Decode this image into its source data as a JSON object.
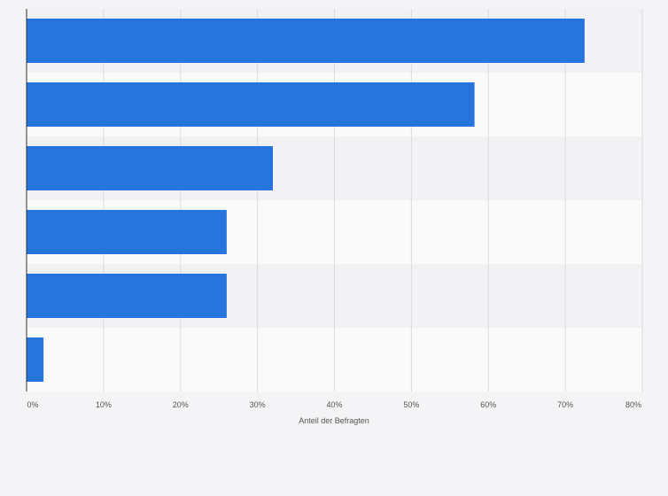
{
  "chart_data": {
    "type": "bar",
    "orientation": "horizontal",
    "categories": [
      "",
      "",
      "",
      "",
      "",
      ""
    ],
    "values": [
      72.5,
      58.2,
      32.0,
      26.0,
      26.0,
      2.2
    ],
    "xlim": [
      0,
      80
    ],
    "ticks": [
      0,
      10,
      20,
      30,
      40,
      50,
      60,
      70,
      80
    ],
    "tick_labels": [
      "0%",
      "10%",
      "20%",
      "30%",
      "40%",
      "50%",
      "60%",
      "70%",
      "80%"
    ],
    "xlabel": "Anteil der Befragten",
    "ylabel": "",
    "title": "",
    "grid": true,
    "bar_color": "#2775dc",
    "band_colors": [
      "#f2f2f4",
      "#fafafb"
    ]
  }
}
